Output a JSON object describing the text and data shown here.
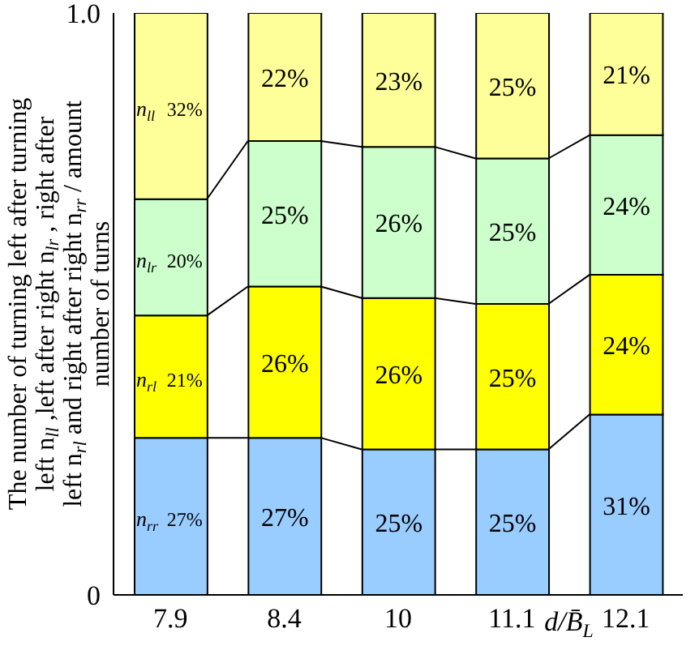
{
  "chart_data": {
    "type": "bar",
    "stacked": true,
    "xlabel": "d/B̄$_{L}$",
    "ylabel": "The number of turning left after turning left n$_{ll}$ ,left after right n$_{lr}$ , right after left n$_{rl}$ and right after right n$_{rr}$ / amount number of turns",
    "categories": [
      "7.9",
      "8.4",
      "10",
      "11.1",
      "12.1"
    ],
    "series": [
      {
        "name": "n$_{rr}$",
        "color": "#99ccff",
        "values": [
          0.27,
          0.27,
          0.25,
          0.25,
          0.31
        ],
        "value_labels": [
          "27%",
          "27%",
          "25%",
          "25%",
          "31%"
        ]
      },
      {
        "name": "n$_{rl}$",
        "color": "#ffff00",
        "values": [
          0.21,
          0.26,
          0.26,
          0.25,
          0.24
        ],
        "value_labels": [
          "21%",
          "26%",
          "26%",
          "25%",
          "24%"
        ]
      },
      {
        "name": "n$_{lr}$",
        "color": "#ccffcc",
        "values": [
          0.2,
          0.25,
          0.26,
          0.25,
          0.24
        ],
        "value_labels": [
          "20%",
          "25%",
          "26%",
          "25%",
          "24%"
        ]
      },
      {
        "name": "n$_{ll}$",
        "color": "#ffff99",
        "values": [
          0.32,
          0.22,
          0.23,
          0.25,
          0.21
        ],
        "value_labels": [
          "32%",
          "22%",
          "23%",
          "25%",
          "21%"
        ]
      }
    ],
    "ylim": [
      0,
      1
    ],
    "yticks": [
      0,
      {
        "value": 1,
        "label": "1.0"
      }
    ],
    "grid": false,
    "legend": false
  }
}
